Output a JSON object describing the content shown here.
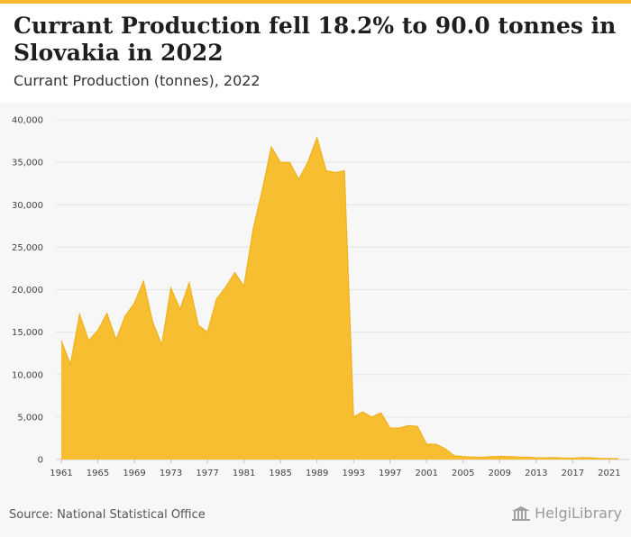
{
  "header": {
    "title": "Currant Production fell 18.2% to 90.0 tonnes in Slovakia in 2022",
    "subtitle": "Currant Production (tonnes), 2022",
    "accent_color": "#f5b82e"
  },
  "footer": {
    "source": "Source: National Statistical Office",
    "logo_text": "HelgiLibrary",
    "logo_icon": "library-building-icon"
  },
  "chart_data": {
    "type": "area",
    "title": "Currant Production fell 18.2% to 90.0 tonnes in Slovakia in 2022",
    "subtitle": "Currant Production (tonnes), 2022",
    "xlabel": "",
    "ylabel": "",
    "x_range": [
      1961,
      2022
    ],
    "ylim": [
      0,
      40000
    ],
    "y_ticks": [
      0,
      5000,
      10000,
      15000,
      20000,
      25000,
      30000,
      35000,
      40000
    ],
    "y_tick_labels": [
      "0",
      "5,000",
      "10,000",
      "15,000",
      "20,000",
      "25,000",
      "30,000",
      "35,000",
      "40,000"
    ],
    "x_ticks": [
      1961,
      1965,
      1969,
      1973,
      1977,
      1981,
      1985,
      1989,
      1993,
      1997,
      2001,
      2005,
      2009,
      2013,
      2017,
      2021
    ],
    "x_tick_labels": [
      "1961",
      "1965",
      "1969",
      "1973",
      "1977",
      "1981",
      "1985",
      "1989",
      "1993",
      "1997",
      "2001",
      "2005",
      "2009",
      "2013",
      "2017",
      "2021"
    ],
    "grid": true,
    "legend": "none",
    "fill_color": "#f7be31",
    "line_color": "#efb21f",
    "series": [
      {
        "x": [
          1961,
          1962,
          1963,
          1964,
          1965,
          1966,
          1967,
          1968,
          1969,
          1970,
          1971,
          1972,
          1973,
          1974,
          1975,
          1976,
          1977,
          1978,
          1979,
          1980,
          1981,
          1982,
          1983,
          1984,
          1985,
          1986,
          1987,
          1988,
          1989,
          1990,
          1991,
          1992,
          1993,
          1994,
          1995,
          1996,
          1997,
          1998,
          1999,
          2000,
          2001,
          2002,
          2003,
          2004,
          2005,
          2006,
          2007,
          2008,
          2009,
          2010,
          2011,
          2012,
          2013,
          2014,
          2015,
          2016,
          2017,
          2018,
          2019,
          2020,
          2021,
          2022
        ],
        "values": [
          14000,
          11200,
          17100,
          14000,
          15200,
          17200,
          14100,
          16900,
          18400,
          21000,
          16200,
          13500,
          20200,
          17700,
          20800,
          15800,
          15000,
          18900,
          20300,
          22000,
          20400,
          27100,
          31700,
          36800,
          35000,
          35000,
          33000,
          35000,
          37900,
          34000,
          33800,
          34000,
          5000,
          5600,
          5000,
          5500,
          3700,
          3700,
          4000,
          3900,
          1800,
          1800,
          1300,
          450,
          350,
          300,
          260,
          330,
          370,
          350,
          300,
          280,
          220,
          200,
          230,
          180,
          150,
          230,
          200,
          140,
          110,
          90
        ]
      }
    ]
  }
}
